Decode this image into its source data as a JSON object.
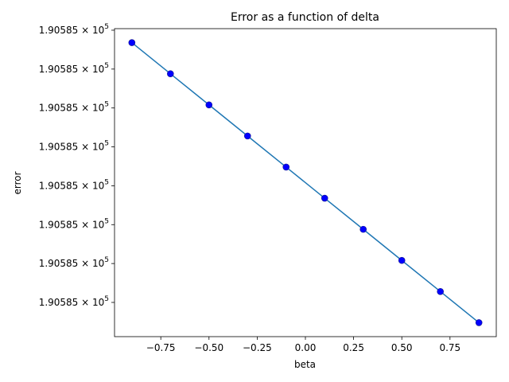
{
  "chart_data": {
    "type": "line",
    "title": "Error as a function of delta",
    "xlabel": "beta",
    "ylabel": "error",
    "xlim": [
      -0.99,
      0.99
    ],
    "x_ticks": [
      -0.75,
      -0.5,
      -0.25,
      0.0,
      0.25,
      0.5,
      0.75
    ],
    "x_tick_labels": [
      "−0.75",
      "−0.50",
      "−0.25",
      "0.00",
      "0.25",
      "0.50",
      "0.75"
    ],
    "y_tick_labels": [
      "1.90585 × 10^5",
      "1.90585 × 10^5",
      "1.90585 × 10^5",
      "1.90585 × 10^5",
      "1.90585 × 10^5",
      "1.90585 × 10^5",
      "1.90585 × 10^5",
      "1.90585 × 10^5"
    ],
    "y_tick_mantissa": "1.90585",
    "y_tick_times": "×",
    "y_tick_base": "10",
    "y_tick_exponent": "5",
    "x": [
      -0.9,
      -0.7,
      -0.5,
      -0.3,
      -0.1,
      0.1,
      0.3,
      0.5,
      0.7,
      0.9
    ],
    "series": [
      {
        "values": [
          9.0,
          8.0,
          7.0,
          6.0,
          5.0,
          4.0,
          3.0,
          2.0,
          1.0,
          0.0
        ]
      }
    ],
    "ylim": [
      -0.45,
      9.45
    ],
    "y_tick_values": [
      0.65,
      1.9,
      3.15,
      4.4,
      5.65,
      6.9,
      8.15,
      9.4
    ],
    "markers": "scatter",
    "line_color": "#1f77b4",
    "marker_color": "#0000ff",
    "grid": false
  }
}
